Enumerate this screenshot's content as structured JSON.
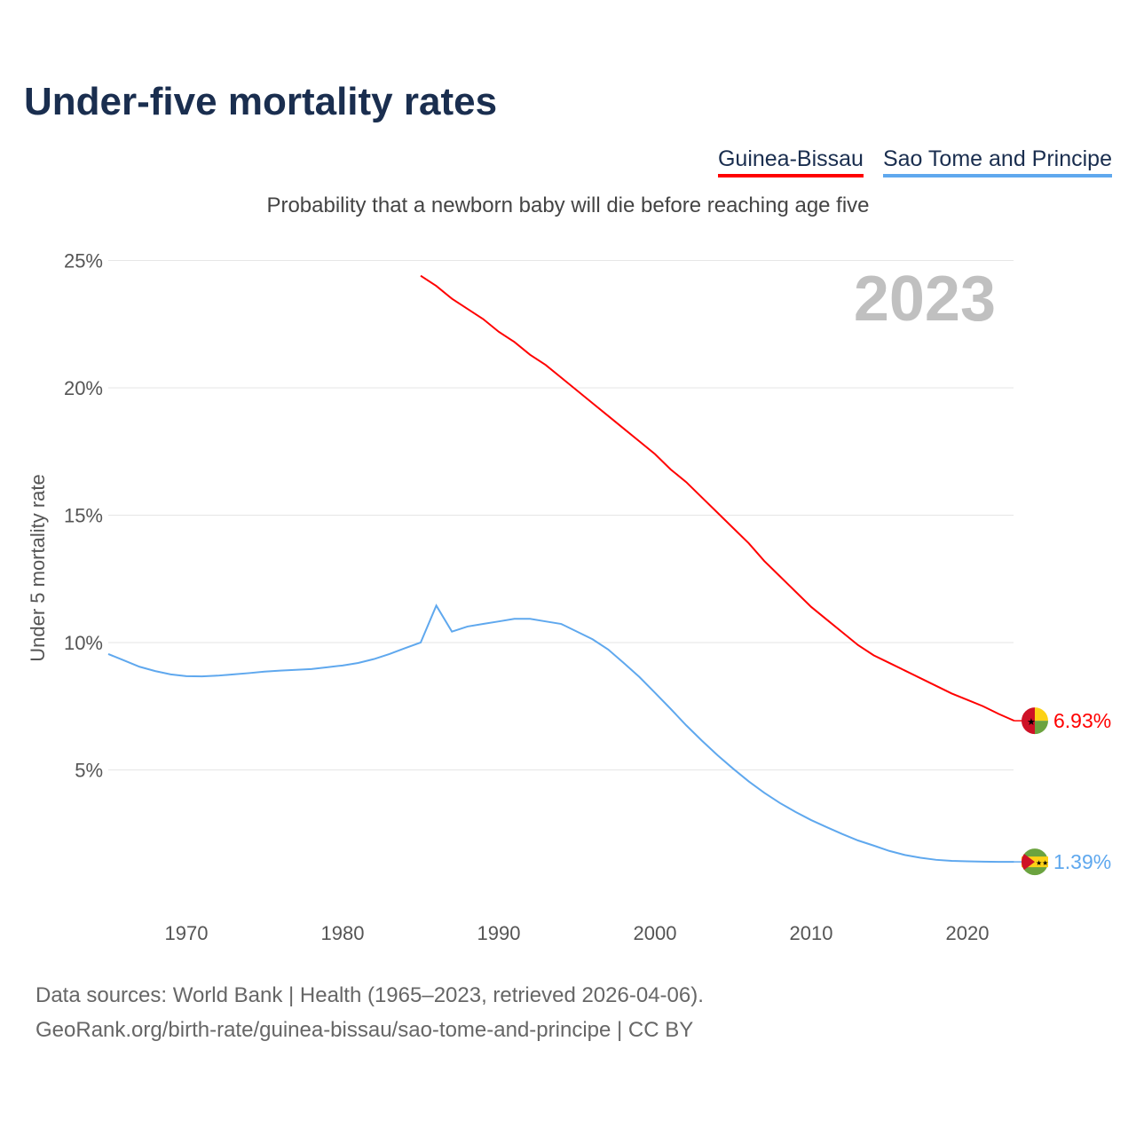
{
  "title": "Under-five mortality rates",
  "subtitle": "Probability that a newborn baby will die before reaching age five",
  "footer": {
    "line1": "Data sources: World Bank | Health (1965–2023, retrieved 2026-04-06).",
    "line2": "GeoRank.org/birth-rate/guinea-bissau/sao-tome-and-principe | CC BY"
  },
  "chart_data": {
    "type": "line",
    "title": "Under-five mortality rates",
    "ylabel": "Under 5 mortality rate",
    "xlabel": "",
    "year_label": "2023",
    "ylim": [
      0,
      25
    ],
    "xlim": [
      1965,
      2023
    ],
    "yticks": [
      5,
      10,
      15,
      20,
      25
    ],
    "ytick_labels": [
      "5%",
      "10%",
      "15%",
      "20%",
      "25%"
    ],
    "xticks": [
      1970,
      1980,
      1990,
      2000,
      2010,
      2020
    ],
    "xtick_labels": [
      "1970",
      "1980",
      "1990",
      "2000",
      "2010",
      "2020"
    ],
    "legend_position": "top-right",
    "series": [
      {
        "name": "Guinea-Bissau",
        "color": "#ff0000",
        "end_label": "6.93%",
        "start": 1985,
        "values": [
          24.4,
          24.0,
          23.5,
          23.1,
          22.7,
          22.2,
          21.8,
          21.3,
          20.9,
          20.4,
          19.9,
          19.4,
          18.9,
          18.4,
          17.9,
          17.4,
          16.8,
          16.3,
          15.7,
          15.1,
          14.5,
          13.9,
          13.2,
          12.6,
          12.0,
          11.4,
          10.9,
          10.4,
          9.9,
          9.5,
          9.2,
          8.9,
          8.6,
          8.3,
          8.0,
          7.75,
          7.5,
          7.2,
          6.93
        ]
      },
      {
        "name": "Sao Tome and Principe",
        "color": "#5fa8ee",
        "end_label": "1.39%",
        "start": 1965,
        "values": [
          9.55,
          9.3,
          9.05,
          8.88,
          8.75,
          8.68,
          8.67,
          8.7,
          8.75,
          8.8,
          8.86,
          8.9,
          8.93,
          8.96,
          9.03,
          9.1,
          9.2,
          9.35,
          9.55,
          9.78,
          10.0,
          11.45,
          10.43,
          10.63,
          10.73,
          10.83,
          10.93,
          10.93,
          10.83,
          10.73,
          10.43,
          10.13,
          9.73,
          9.2,
          8.65,
          8.03,
          7.4,
          6.75,
          6.15,
          5.58,
          5.05,
          4.55,
          4.1,
          3.7,
          3.35,
          3.03,
          2.75,
          2.48,
          2.23,
          2.03,
          1.82,
          1.66,
          1.55,
          1.47,
          1.43,
          1.41,
          1.4,
          1.39,
          1.39
        ]
      }
    ]
  }
}
